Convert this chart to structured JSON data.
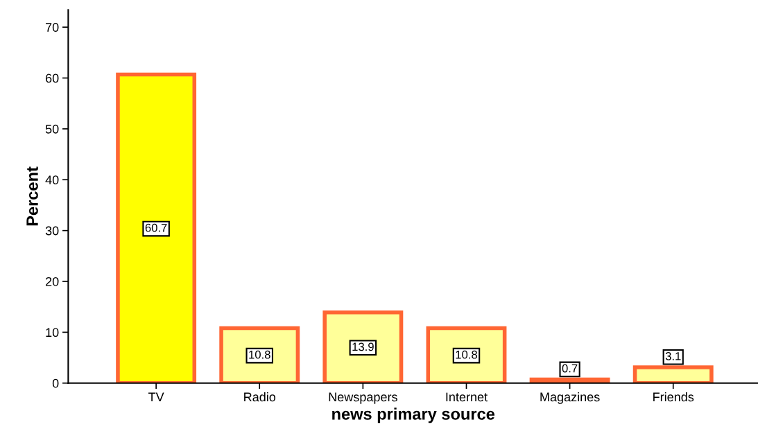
{
  "chart_data": {
    "type": "bar",
    "xlabel": "news primary source",
    "ylabel": "Percent",
    "categories": [
      "TV",
      "Radio",
      "Newspapers",
      "Internet",
      "Magazines",
      "Friends"
    ],
    "values": [
      60.7,
      10.8,
      13.9,
      10.8,
      0.7,
      3.1
    ],
    "colors": [
      "#ffff00",
      "#ffff99",
      "#ffff99",
      "#ffff99",
      "#ffff99",
      "#ffff99"
    ],
    "ylim": [
      0,
      73.4
    ],
    "yticks": [
      0,
      10,
      20,
      30,
      40,
      50,
      60,
      70
    ],
    "data_labels": true,
    "grid": false
  }
}
